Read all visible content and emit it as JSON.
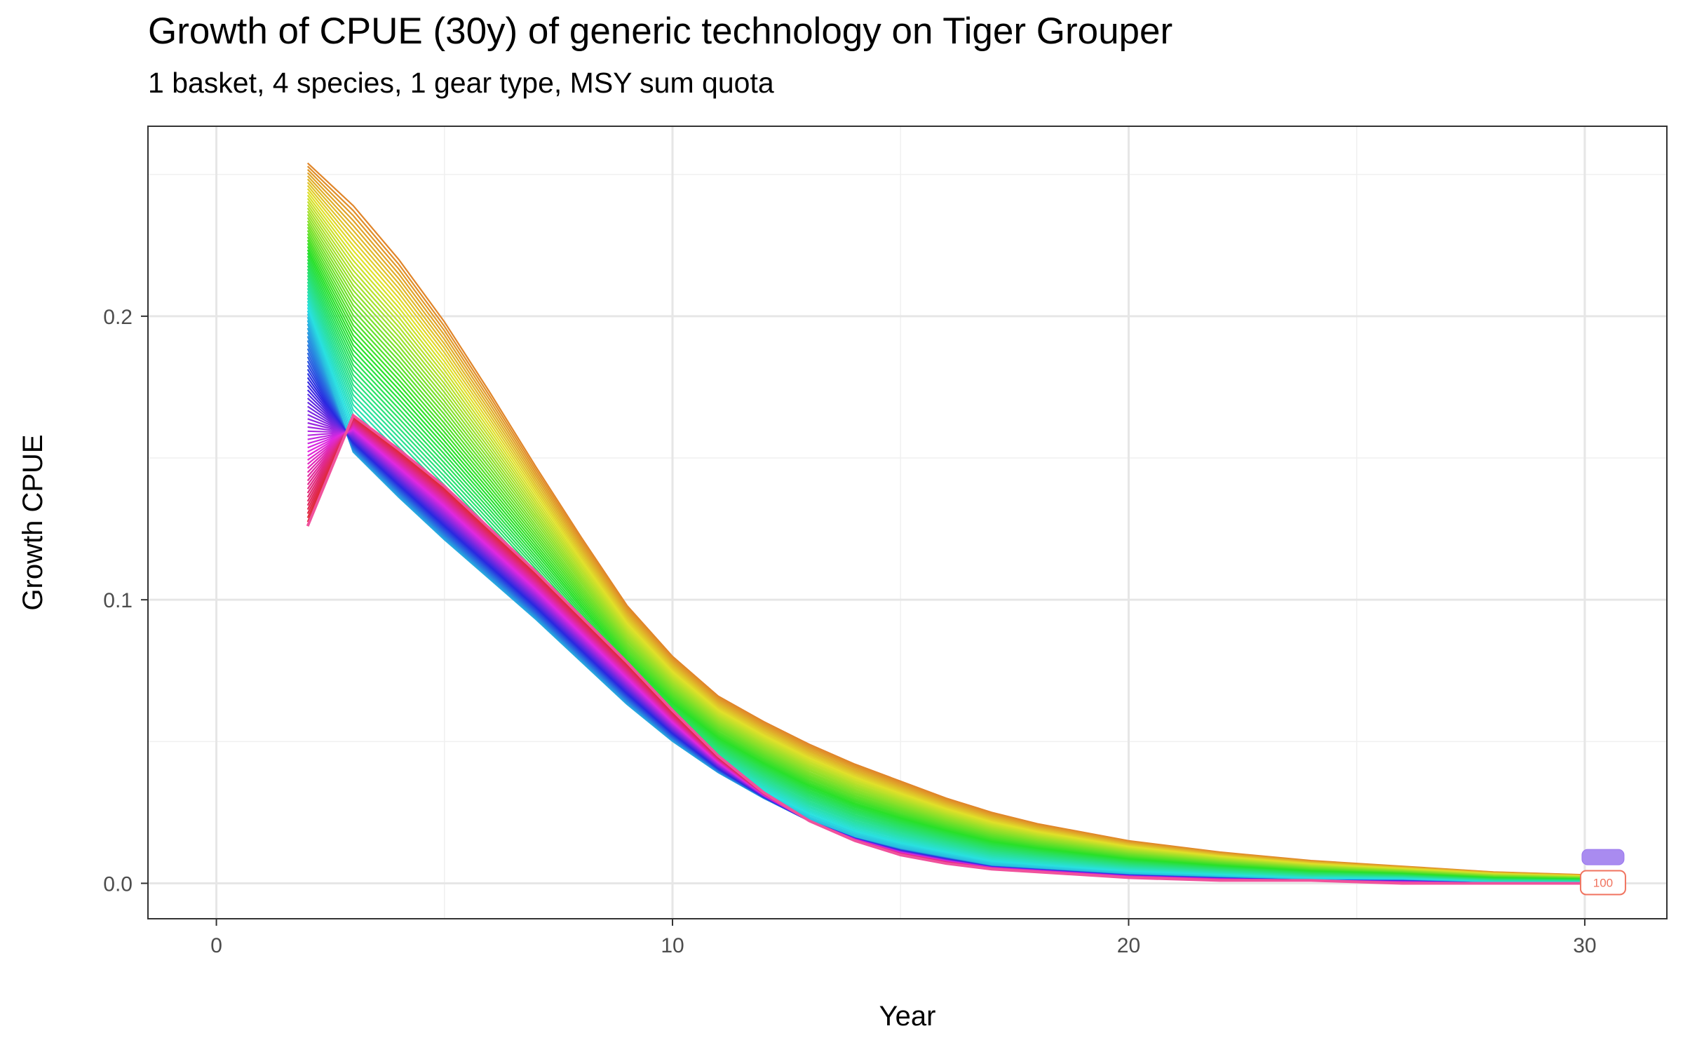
{
  "chart_data": {
    "type": "line",
    "title": "Growth of CPUE (30y) of generic technology on Tiger Grouper",
    "subtitle": "1 basket, 4 species, 1 gear type, MSY sum quota",
    "xlabel": "Year",
    "ylabel": "Growth CPUE",
    "xlim": [
      -1.5,
      31.8
    ],
    "ylim": [
      -0.0125,
      0.267
    ],
    "x_ticks": [
      0,
      10,
      20,
      30
    ],
    "x_tick_labels": [
      "0",
      "10",
      "20",
      "30"
    ],
    "y_ticks": [
      0.0,
      0.1,
      0.2
    ],
    "y_tick_labels": [
      "0.0",
      "0.1",
      "0.2"
    ],
    "grid": true,
    "legend": "none",
    "series_count": 100,
    "series_note_shown": "many overlapping series colored along a hue gradient; series 100 labeled at right end",
    "representative_series": [
      {
        "x": [
          2,
          3,
          4,
          5,
          6,
          7,
          8,
          9,
          10,
          11,
          12,
          13,
          14,
          15,
          16,
          17,
          18,
          19,
          20,
          22,
          24,
          26,
          28,
          30
        ],
        "values": [
          0.254,
          0.239,
          0.22,
          0.198,
          0.173,
          0.147,
          0.122,
          0.098,
          0.08,
          0.066,
          0.057,
          0.049,
          0.042,
          0.036,
          0.03,
          0.025,
          0.021,
          0.018,
          0.015,
          0.011,
          0.008,
          0.006,
          0.004,
          0.003
        ]
      },
      {
        "x": [
          2,
          3,
          4,
          5,
          6,
          7,
          8,
          9,
          10,
          11,
          12,
          13,
          14,
          15,
          16,
          17,
          18,
          19,
          20,
          22,
          24,
          26,
          28,
          30
        ],
        "values": [
          0.198,
          0.152,
          0.136,
          0.121,
          0.107,
          0.093,
          0.078,
          0.063,
          0.05,
          0.039,
          0.03,
          0.022,
          0.016,
          0.012,
          0.009,
          0.006,
          0.005,
          0.004,
          0.003,
          0.002,
          0.001,
          0.001,
          0.0,
          0.0
        ]
      },
      {
        "x": [
          2,
          3,
          4,
          5,
          6,
          7,
          8,
          9,
          10,
          11,
          12,
          13,
          14,
          15,
          16,
          17,
          18,
          19,
          20,
          22,
          24,
          26,
          28,
          30
        ],
        "values": [
          0.126,
          0.165,
          0.153,
          0.14,
          0.125,
          0.11,
          0.094,
          0.078,
          0.061,
          0.045,
          0.032,
          0.022,
          0.015,
          0.01,
          0.007,
          0.005,
          0.004,
          0.003,
          0.002,
          0.001,
          0.001,
          0.0,
          0.0,
          0.0
        ]
      }
    ],
    "end_label": {
      "text": "100",
      "x": 30.4,
      "y": 0.0
    }
  }
}
